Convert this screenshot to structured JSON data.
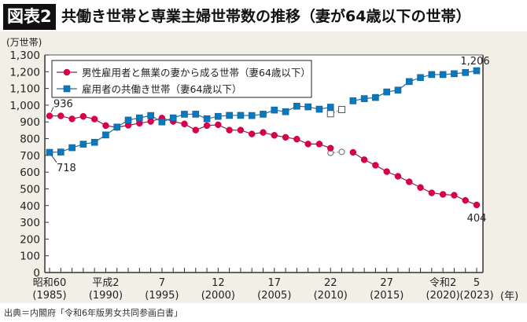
{
  "header": {
    "figure_label": "図表2",
    "title": "共働き世帯と専業主婦世帯数の推移（妻が64歳以下の世帯）"
  },
  "source": "出典＝内閣府「令和6年版男女共同参画白書」",
  "colors": {
    "series1": "#d7004f",
    "series2": "#0b78bd",
    "panel_bg": "#f1efe6",
    "plot_bg": "#ffffff"
  },
  "chart_data": {
    "type": "line",
    "title": "共働き世帯と専業主婦世帯数の推移（妻が64歳以下の世帯）",
    "ylabel": "(万世帯)",
    "xlabel": "(年)",
    "ylim": [
      0,
      1300
    ],
    "yticks": [
      "0",
      "100",
      "200",
      "300",
      "400",
      "500",
      "600",
      "700",
      "800",
      "900",
      "1,000",
      "1,100",
      "1,200",
      "1,300"
    ],
    "xlim": [
      1985,
      2023
    ],
    "xtick_labels": [
      {
        "year": 1985,
        "era": "昭和60",
        "western": "(1985)"
      },
      {
        "year": 1990,
        "era": "平成2",
        "western": "(1990)"
      },
      {
        "year": 1995,
        "era": "7",
        "western": "(1995)"
      },
      {
        "year": 2000,
        "era": "12",
        "western": "(2000)"
      },
      {
        "year": 2005,
        "era": "17",
        "western": "(2005)"
      },
      {
        "year": 2010,
        "era": "22",
        "western": "(2010)"
      },
      {
        "year": 2015,
        "era": "27",
        "western": "(2015)"
      },
      {
        "year": 2020,
        "era": "令和2",
        "western": "(2020)"
      },
      {
        "year": 2023,
        "era": "5",
        "western": "(2023)"
      }
    ],
    "legend_position": "top-left",
    "grid": false,
    "x": [
      1985,
      1986,
      1987,
      1988,
      1989,
      1990,
      1991,
      1992,
      1993,
      1994,
      1995,
      1996,
      1997,
      1998,
      1999,
      2000,
      2001,
      2002,
      2003,
      2004,
      2005,
      2006,
      2007,
      2008,
      2009,
      2010,
      2011,
      2012,
      2013,
      2014,
      2015,
      2016,
      2017,
      2018,
      2019,
      2020,
      2021,
      2022,
      2023
    ],
    "series": [
      {
        "name": "男性雇用者と無業の妻から成る世帯（妻64歳以下）",
        "marker": "circle",
        "color": "#d7004f",
        "values": [
          936,
          936,
          918,
          933,
          917,
          878,
          867,
          880,
          892,
          903,
          923,
          903,
          888,
          851,
          878,
          883,
          851,
          851,
          828,
          837,
          820,
          808,
          797,
          768,
          768,
          743,
          null,
          718,
          674,
          641,
          603,
          575,
          542,
          508,
          476,
          467,
          462,
          431,
          404
        ],
        "reference_hollow": [
          {
            "x": 2010,
            "y": 715
          },
          {
            "x": 2011,
            "y": 721
          }
        ],
        "labels": [
          {
            "x": 1985,
            "text": "936"
          },
          {
            "x": 2023,
            "text": "404"
          }
        ]
      },
      {
        "name": "雇用者の共働き世帯（妻64歳以下）",
        "marker": "square",
        "color": "#0b78bd",
        "values": [
          718,
          720,
          746,
          767,
          778,
          822,
          869,
          911,
          924,
          938,
          900,
          924,
          946,
          946,
          919,
          933,
          939,
          939,
          938,
          946,
          971,
          961,
          994,
          990,
          976,
          988,
          null,
          1026,
          1039,
          1046,
          1079,
          1090,
          1141,
          1165,
          1183,
          1183,
          1188,
          1195,
          1206
        ],
        "reference_hollow": [
          {
            "x": 2010,
            "y": 949
          },
          {
            "x": 2011,
            "y": 974
          }
        ],
        "labels": [
          {
            "x": 1985,
            "text": "718"
          },
          {
            "x": 2023,
            "text": "1,206"
          }
        ]
      }
    ]
  }
}
